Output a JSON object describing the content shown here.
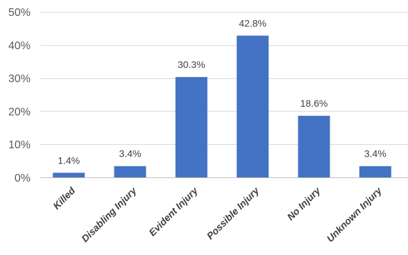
{
  "chart_data": {
    "type": "bar",
    "title": "",
    "xlabel": "",
    "ylabel": "",
    "categories": [
      "Killed",
      "Disabling Injury",
      "Evident Injury",
      "Possible Injury",
      "No Injury",
      "Unknown Injury"
    ],
    "values": [
      1.4,
      3.4,
      30.3,
      42.8,
      18.6,
      3.4
    ],
    "data_labels": [
      "1.4%",
      "3.4%",
      "30.3%",
      "42.8%",
      "18.6%",
      "3.4%"
    ],
    "ylim": [
      0,
      50
    ],
    "yticks": [
      0,
      10,
      20,
      30,
      40,
      50
    ],
    "ytick_labels": [
      "0%",
      "10%",
      "20%",
      "30%",
      "40%",
      "50%"
    ],
    "grid": true,
    "legend": "none",
    "colors": {
      "bar": "#4472C4",
      "grid": "#D9D9D9",
      "axis": "#BFBFBF"
    }
  }
}
